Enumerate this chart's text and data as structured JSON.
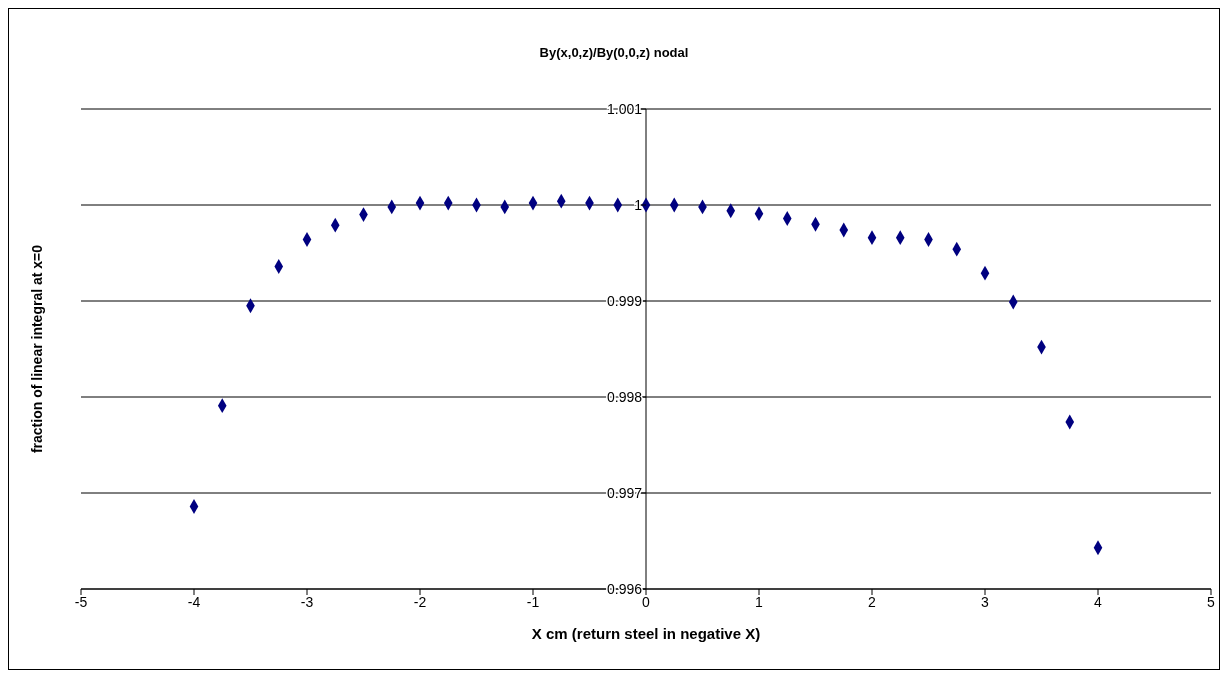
{
  "chart_data": {
    "type": "scatter",
    "title": "By(x,0,z)/By(0,0,z) nodal",
    "xlabel": "X cm (return steel in negative X)",
    "ylabel": "fraction of linear integral at x=0",
    "x": [
      -4,
      -3.75,
      -3.5,
      -3.25,
      -3,
      -2.75,
      -2.5,
      -2.25,
      -2,
      -1.75,
      -1.5,
      -1.25,
      -1,
      -0.75,
      -0.5,
      -0.25,
      0,
      0.25,
      0.5,
      0.75,
      1,
      1.25,
      1.5,
      1.75,
      2,
      2.25,
      2.5,
      2.75,
      3,
      3.25,
      3.5,
      3.75,
      4
    ],
    "series": [
      {
        "color": "#000080",
        "values": [
          0.99686,
          0.99791,
          0.99895,
          0.99936,
          0.99964,
          0.99979,
          0.9999,
          0.99998,
          1.00002,
          1.00002,
          1.0,
          0.99998,
          1.00002,
          1.00004,
          1.00002,
          1.0,
          1.0,
          1.0,
          0.99998,
          0.99994,
          0.99991,
          0.99986,
          0.9998,
          0.99974,
          0.99966,
          0.99966,
          0.99964,
          0.99954,
          0.99929,
          0.99899,
          0.99852,
          0.99774,
          0.99643
        ]
      }
    ],
    "xlim": [
      -5,
      5
    ],
    "xticks": [
      -5,
      -4,
      -3,
      -2,
      -1,
      0,
      1,
      2,
      3,
      4,
      5
    ],
    "ylim": [
      0.996,
      1.001
    ],
    "yticks": [
      0.996,
      0.997,
      0.998,
      0.999,
      1,
      1.001
    ],
    "grid": "y",
    "marker": "diamond"
  }
}
